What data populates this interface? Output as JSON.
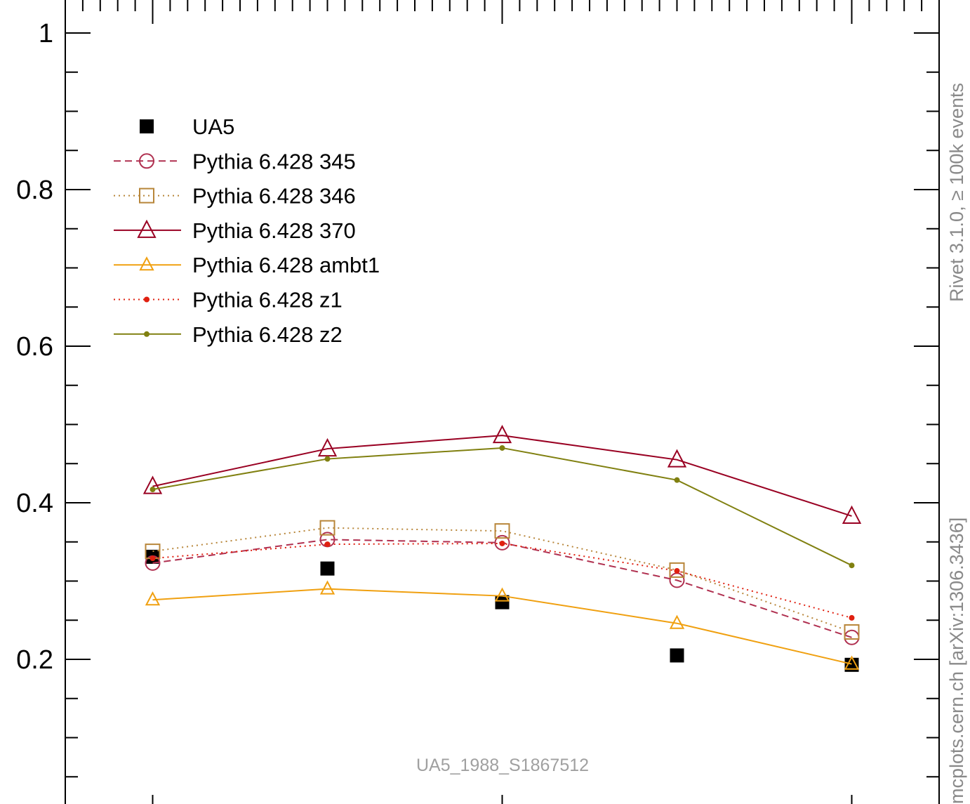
{
  "chart_data": {
    "type": "line",
    "title": "",
    "xlabel": "",
    "ylabel": "",
    "ylim": [
      0.0,
      1.0
    ],
    "xlim": [
      0.5,
      5.5
    ],
    "x": [
      1,
      2,
      3,
      4,
      5
    ],
    "ytick_labels": [
      "0.2",
      "0.4",
      "0.6",
      "0.8",
      "1"
    ],
    "ytick_values": [
      0.2,
      0.4,
      0.6,
      0.8,
      1.0
    ],
    "grid": false,
    "legend_position": "top-left",
    "series": [
      {
        "name": "UA5",
        "values": [
          0.331,
          0.316,
          0.273,
          0.205,
          0.193
        ],
        "color": "#000000",
        "marker": "filled-square",
        "line": "none"
      },
      {
        "name": "Pythia 6.428 345",
        "values": [
          0.323,
          0.353,
          0.349,
          0.301,
          0.228
        ],
        "color": "#b03050",
        "marker": "open-circle",
        "line": "dashed"
      },
      {
        "name": "Pythia 6.428 346",
        "values": [
          0.338,
          0.368,
          0.364,
          0.314,
          0.235
        ],
        "color": "#b8863a",
        "marker": "open-square",
        "line": "dotted"
      },
      {
        "name": "Pythia 6.428 370",
        "values": [
          0.421,
          0.469,
          0.486,
          0.455,
          0.383
        ],
        "color": "#990022",
        "marker": "open-triangle",
        "line": "solid"
      },
      {
        "name": "Pythia 6.428 ambt1",
        "values": [
          0.276,
          0.29,
          0.281,
          0.246,
          0.194
        ],
        "color": "#f0a010",
        "marker": "open-triangle-small",
        "line": "solid"
      },
      {
        "name": "Pythia 6.428 z1",
        "values": [
          0.329,
          0.347,
          0.348,
          0.313,
          0.253
        ],
        "color": "#e02010",
        "marker": "dot",
        "line": "dotted"
      },
      {
        "name": "Pythia 6.428 z2",
        "values": [
          0.417,
          0.456,
          0.47,
          0.429,
          0.32
        ],
        "color": "#808010",
        "marker": "dot",
        "line": "solid"
      }
    ]
  },
  "side_label_top": "Rivet 3.1.0, ≥ 100k events",
  "side_label_bottom": "mcplots.cern.ch [arXiv:1306.3436]",
  "watermark": "UA5_1988_S1867512"
}
